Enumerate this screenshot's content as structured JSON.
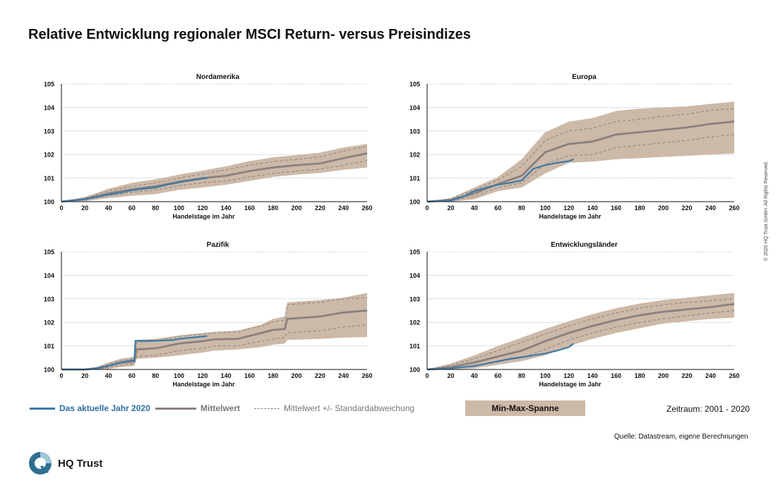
{
  "title": "Relative Entwicklung regionaler MSCI Return- versus Preisindizes",
  "colors": {
    "current": "#3d7aa6",
    "mean": "#8a8080",
    "band": "#cdb9a8"
  },
  "legend": {
    "current_year": "Das aktuelle Jahr 2020",
    "mean": "Mittelwert",
    "std": "Mittelwert +/- Standardabweichung",
    "minmax": "Min-Max-Spanne"
  },
  "period": "Zeitraum: 2001 - 2020",
  "source": "Quelle: Datastream, eigene Berechnungen",
  "copyright": "© 2020 HQ Trust GmbH. All Rights Reserved.",
  "brand": {
    "name": "HQ Trust",
    "logo_icon": "hq-trust-logo-icon"
  },
  "chart_data": [
    {
      "type": "line",
      "title": "Nordamerika",
      "xlabel": "Handelstage im Jahr",
      "ylabel": "",
      "xlim": [
        0,
        260
      ],
      "ylim": [
        100,
        105
      ],
      "xticks": [
        0,
        20,
        40,
        60,
        80,
        100,
        120,
        140,
        160,
        180,
        200,
        220,
        240,
        260
      ],
      "yticks": [
        100,
        101,
        102,
        103,
        104,
        105
      ],
      "x": [
        0,
        20,
        40,
        60,
        80,
        100,
        120,
        140,
        160,
        180,
        200,
        220,
        240,
        260
      ],
      "series": [
        {
          "name": "Mittelwert",
          "values": [
            100,
            100.12,
            100.35,
            100.52,
            100.65,
            100.85,
            101.0,
            101.1,
            101.3,
            101.45,
            101.55,
            101.62,
            101.85,
            102.05
          ]
        },
        {
          "name": "Mittelwert +/- Standardabweichung (oben)",
          "values": [
            100,
            100.15,
            100.45,
            100.65,
            100.8,
            101.0,
            101.18,
            101.35,
            101.55,
            101.7,
            101.8,
            101.9,
            102.15,
            102.35
          ]
        },
        {
          "name": "Mittelwert +/- Standardabweichung (unten)",
          "values": [
            100,
            100.08,
            100.25,
            100.4,
            100.5,
            100.68,
            100.8,
            100.88,
            101.05,
            101.2,
            101.3,
            101.38,
            101.55,
            101.75
          ]
        },
        {
          "name": "Min",
          "values": [
            100,
            100.02,
            100.15,
            100.25,
            100.32,
            100.5,
            100.6,
            100.72,
            100.88,
            101.05,
            101.15,
            101.22,
            101.35,
            101.45
          ]
        },
        {
          "name": "Max",
          "values": [
            100,
            100.2,
            100.55,
            100.8,
            100.95,
            101.15,
            101.32,
            101.5,
            101.72,
            101.88,
            101.98,
            102.08,
            102.3,
            102.45
          ]
        },
        {
          "name": "Das aktuelle Jahr 2020",
          "x": [
            0,
            10,
            20,
            30,
            40,
            50,
            60,
            70,
            80,
            90,
            100,
            110,
            120,
            124
          ],
          "values": [
            100,
            100.05,
            100.1,
            100.2,
            100.3,
            100.38,
            100.48,
            100.55,
            100.6,
            100.72,
            100.82,
            100.9,
            100.98,
            101.0
          ]
        }
      ]
    },
    {
      "type": "line",
      "title": "Europa",
      "xlabel": "Handelstage im Jahr",
      "ylabel": "",
      "xlim": [
        0,
        260
      ],
      "ylim": [
        100,
        105
      ],
      "xticks": [
        0,
        20,
        40,
        60,
        80,
        100,
        120,
        140,
        160,
        180,
        200,
        220,
        240,
        260
      ],
      "yticks": [
        100,
        101,
        102,
        103,
        104,
        105
      ],
      "x": [
        0,
        20,
        40,
        60,
        80,
        100,
        120,
        140,
        160,
        180,
        200,
        220,
        240,
        260
      ],
      "series": [
        {
          "name": "Mittelwert",
          "values": [
            100,
            100.08,
            100.35,
            100.75,
            101.1,
            102.1,
            102.45,
            102.55,
            102.85,
            102.95,
            103.05,
            103.15,
            103.3,
            103.4
          ]
        },
        {
          "name": "Mittelwert +/- Standardabweichung (oben)",
          "values": [
            100,
            100.12,
            100.5,
            100.92,
            101.5,
            102.6,
            103.0,
            103.12,
            103.4,
            103.5,
            103.62,
            103.72,
            103.88,
            103.95
          ]
        },
        {
          "name": "Mittelwert +/- Standardabweichung (unten)",
          "values": [
            100,
            100.04,
            100.22,
            100.6,
            100.8,
            101.6,
            101.95,
            102.0,
            102.3,
            102.4,
            102.5,
            102.6,
            102.75,
            102.85
          ]
        },
        {
          "name": "Min",
          "values": [
            100,
            100.0,
            100.1,
            100.45,
            100.6,
            101.2,
            101.65,
            101.7,
            101.8,
            101.85,
            101.9,
            101.95,
            102.0,
            102.05
          ]
        },
        {
          "name": "Max",
          "values": [
            100,
            100.15,
            100.6,
            101.05,
            101.8,
            102.95,
            103.4,
            103.55,
            103.85,
            103.95,
            104.0,
            104.05,
            104.15,
            104.25
          ]
        },
        {
          "name": "Das aktuelle Jahr 2020",
          "x": [
            0,
            10,
            20,
            30,
            40,
            50,
            60,
            70,
            80,
            90,
            100,
            110,
            120,
            124
          ],
          "values": [
            100,
            100.02,
            100.05,
            100.2,
            100.45,
            100.6,
            100.72,
            100.8,
            100.9,
            101.4,
            101.55,
            101.65,
            101.72,
            101.8
          ]
        }
      ]
    },
    {
      "type": "line",
      "title": "Pazifik",
      "xlabel": "Handelstage im Jahr",
      "ylabel": "",
      "xlim": [
        0,
        260
      ],
      "ylim": [
        100,
        105
      ],
      "xticks": [
        0,
        20,
        40,
        60,
        80,
        100,
        120,
        140,
        160,
        180,
        200,
        220,
        240,
        260
      ],
      "yticks": [
        100,
        101,
        102,
        103,
        104,
        105
      ],
      "x": [
        0,
        20,
        30,
        40,
        50,
        62,
        64,
        80,
        100,
        120,
        130,
        150,
        170,
        180,
        190,
        192,
        220,
        240,
        260
      ],
      "series": [
        {
          "name": "Mittelwert",
          "values": [
            100,
            100.0,
            100.05,
            100.15,
            100.28,
            100.35,
            100.85,
            100.9,
            101.1,
            101.2,
            101.28,
            101.3,
            101.55,
            101.68,
            101.72,
            102.15,
            102.25,
            102.42,
            102.5
          ]
        },
        {
          "name": "Mittelwert +/- Standardabweichung (oben)",
          "values": [
            100,
            100.02,
            100.08,
            100.22,
            100.38,
            100.45,
            101.15,
            101.2,
            101.4,
            101.5,
            101.55,
            101.6,
            101.85,
            102.02,
            102.1,
            102.75,
            102.85,
            103.0,
            103.05
          ]
        },
        {
          "name": "Mittelwert +/- Standardabweichung (unten)",
          "values": [
            100,
            100.0,
            100.02,
            100.08,
            100.18,
            100.25,
            100.55,
            100.6,
            100.8,
            100.9,
            101.0,
            101.0,
            101.2,
            101.3,
            101.35,
            101.55,
            101.65,
            101.8,
            101.9
          ]
        },
        {
          "name": "Min",
          "values": [
            100,
            100.0,
            100.0,
            100.02,
            100.1,
            100.15,
            100.45,
            100.5,
            100.6,
            100.72,
            100.8,
            100.85,
            100.95,
            101.05,
            101.1,
            101.25,
            101.3,
            101.35,
            101.38
          ]
        },
        {
          "name": "Max",
          "values": [
            100,
            100.03,
            100.1,
            100.3,
            100.45,
            100.55,
            101.25,
            101.3,
            101.45,
            101.55,
            101.6,
            101.65,
            101.9,
            102.15,
            102.25,
            102.85,
            102.95,
            103.05,
            103.25
          ]
        },
        {
          "name": "Das aktuelle Jahr 2020",
          "x": [
            0,
            20,
            30,
            40,
            50,
            62,
            63,
            80,
            95,
            100,
            110,
            120,
            124
          ],
          "values": [
            100,
            100.0,
            100.05,
            100.15,
            100.3,
            100.4,
            101.22,
            101.22,
            101.25,
            101.3,
            101.35,
            101.4,
            101.42
          ]
        }
      ]
    },
    {
      "type": "line",
      "title": "Entwicklungsländer",
      "xlabel": "Handelstage im Jahr",
      "ylabel": "",
      "xlim": [
        0,
        260
      ],
      "ylim": [
        100,
        105
      ],
      "xticks": [
        0,
        20,
        40,
        60,
        80,
        100,
        120,
        140,
        160,
        180,
        200,
        220,
        240,
        260
      ],
      "yticks": [
        100,
        101,
        102,
        103,
        104,
        105
      ],
      "x": [
        0,
        20,
        40,
        60,
        80,
        100,
        120,
        140,
        160,
        180,
        200,
        220,
        240,
        260
      ],
      "series": [
        {
          "name": "Mittelwert",
          "values": [
            100,
            100.1,
            100.3,
            100.55,
            100.8,
            101.2,
            101.55,
            101.85,
            102.1,
            102.3,
            102.45,
            102.55,
            102.65,
            102.78
          ]
        },
        {
          "name": "Mittelwert +/- Standardabweichung (oben)",
          "values": [
            100,
            100.18,
            100.45,
            100.8,
            101.15,
            101.5,
            101.85,
            102.15,
            102.4,
            102.6,
            102.75,
            102.85,
            102.92,
            103.0
          ]
        },
        {
          "name": "Mittelwert +/- Standardabweichung (unten)",
          "values": [
            100,
            100.03,
            100.15,
            100.32,
            100.5,
            100.85,
            101.25,
            101.55,
            101.8,
            102.0,
            102.15,
            102.28,
            102.4,
            102.5
          ]
        },
        {
          "name": "Min",
          "values": [
            100,
            100.0,
            100.05,
            100.2,
            100.35,
            100.6,
            101.0,
            101.3,
            101.55,
            101.75,
            101.95,
            102.05,
            102.15,
            102.2
          ]
        },
        {
          "name": "Max",
          "values": [
            100,
            100.25,
            100.6,
            101.0,
            101.35,
            101.72,
            102.05,
            102.35,
            102.6,
            102.8,
            102.95,
            103.05,
            103.15,
            103.25
          ]
        },
        {
          "name": "Das aktuelle Jahr 2020",
          "x": [
            0,
            10,
            20,
            30,
            40,
            50,
            60,
            70,
            80,
            90,
            100,
            110,
            120,
            124
          ],
          "values": [
            100,
            100.02,
            100.05,
            100.1,
            100.15,
            100.25,
            100.35,
            100.45,
            100.52,
            100.6,
            100.68,
            100.8,
            100.95,
            101.1
          ]
        }
      ]
    }
  ]
}
